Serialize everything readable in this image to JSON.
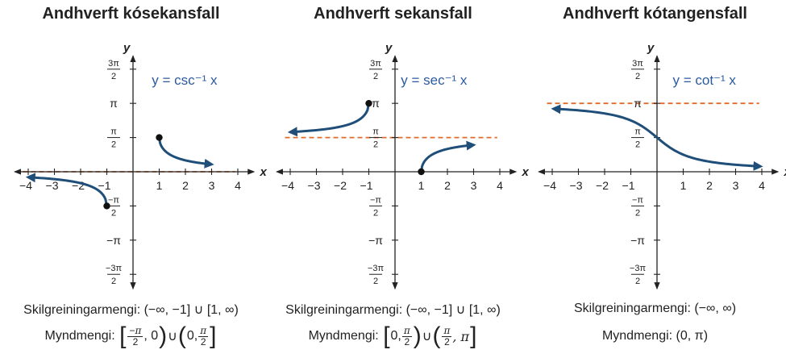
{
  "chart_data": [
    {
      "type": "line",
      "title": "Andhverft kósekansfall",
      "xlabel": "x",
      "ylabel": "y",
      "xlim": [
        -4,
        4
      ],
      "ylim": [
        -4.712,
        4.712
      ],
      "x_ticks": [
        "−4",
        "−3",
        "−2",
        "−1",
        "1",
        "2",
        "3",
        "4"
      ],
      "y_ticks": [
        {
          "num": "3π",
          "den": "2",
          "value": 4.712
        },
        {
          "num": "π",
          "den": "",
          "value": 3.1416
        },
        {
          "num": "π",
          "den": "2",
          "value": 1.5708
        },
        {
          "num": "−π",
          "den": "2",
          "value": -1.5708
        },
        {
          "num": "−π",
          "den": "",
          "value": -3.1416
        },
        {
          "num": "−3π",
          "den": "2",
          "value": -4.712
        }
      ],
      "function": "csc",
      "equation_label": "y = csc⁻¹ x",
      "asymptotes_y": [
        0
      ],
      "endpoints": [
        [
          1,
          1.5708
        ],
        [
          -1,
          -1.5708
        ]
      ],
      "domain_text": "Skilgreiningarmengi: (−∞, −1] ∪ [1, ∞)",
      "range": {
        "label": "Myndmengi:",
        "parts": [
          "[",
          "−π/2",
          ", 0",
          ")",
          " ∪ ",
          "(",
          "0, ",
          "π/2",
          "]"
        ]
      }
    },
    {
      "type": "line",
      "title": "Andhverft sekansfall",
      "xlabel": "x",
      "ylabel": "y",
      "xlim": [
        -4,
        4
      ],
      "ylim": [
        -4.712,
        4.712
      ],
      "x_ticks": [
        "−4",
        "−3",
        "−2",
        "−1",
        "1",
        "2",
        "3",
        "4"
      ],
      "y_ticks": [
        {
          "num": "3π",
          "den": "2",
          "value": 4.712
        },
        {
          "num": "π",
          "den": "",
          "value": 3.1416
        },
        {
          "num": "π",
          "den": "2",
          "value": 1.5708
        },
        {
          "num": "−π",
          "den": "2",
          "value": -1.5708
        },
        {
          "num": "−π",
          "den": "",
          "value": -3.1416
        },
        {
          "num": "−3π",
          "den": "2",
          "value": -4.712
        }
      ],
      "function": "sec",
      "equation_label": "y = sec⁻¹ x",
      "asymptotes_y": [
        1.5708
      ],
      "endpoints": [
        [
          1,
          0
        ],
        [
          -1,
          3.1416
        ]
      ],
      "domain_text": "Skilgreiningarmengi: (−∞, −1] ∪ [1, ∞)",
      "range": {
        "label": "Myndmengi:",
        "parts": [
          "[",
          "0, ",
          "π/2",
          ")",
          " ∪ ",
          "(",
          "π/2",
          ", π",
          "]"
        ]
      }
    },
    {
      "type": "line",
      "title": "Andhverft kótangensfall",
      "xlabel": "x",
      "ylabel": "y",
      "xlim": [
        -4,
        4
      ],
      "ylim": [
        -4.712,
        4.712
      ],
      "x_ticks": [
        "−4",
        "−3",
        "−2",
        "−1",
        "1",
        "2",
        "3",
        "4"
      ],
      "y_ticks": [
        {
          "num": "3π",
          "den": "2",
          "value": 4.712
        },
        {
          "num": "π",
          "den": "",
          "value": 3.1416
        },
        {
          "num": "π",
          "den": "2",
          "value": 1.5708
        },
        {
          "num": "−π",
          "den": "2",
          "value": -1.5708
        },
        {
          "num": "−π",
          "den": "",
          "value": -3.1416
        },
        {
          "num": "−3π",
          "den": "2",
          "value": -4.712
        }
      ],
      "function": "cot",
      "equation_label": "y = cot⁻¹ x",
      "asymptotes_y": [
        3.1416
      ],
      "endpoints": [],
      "domain_text": "Skilgreiningarmengi: (−∞, ∞)",
      "range_text": "Myndmengi: (0, π)"
    }
  ],
  "colors": {
    "curve": "#1f4e79",
    "asymptote": "#e06a2c",
    "label": "#2c5aa0"
  }
}
